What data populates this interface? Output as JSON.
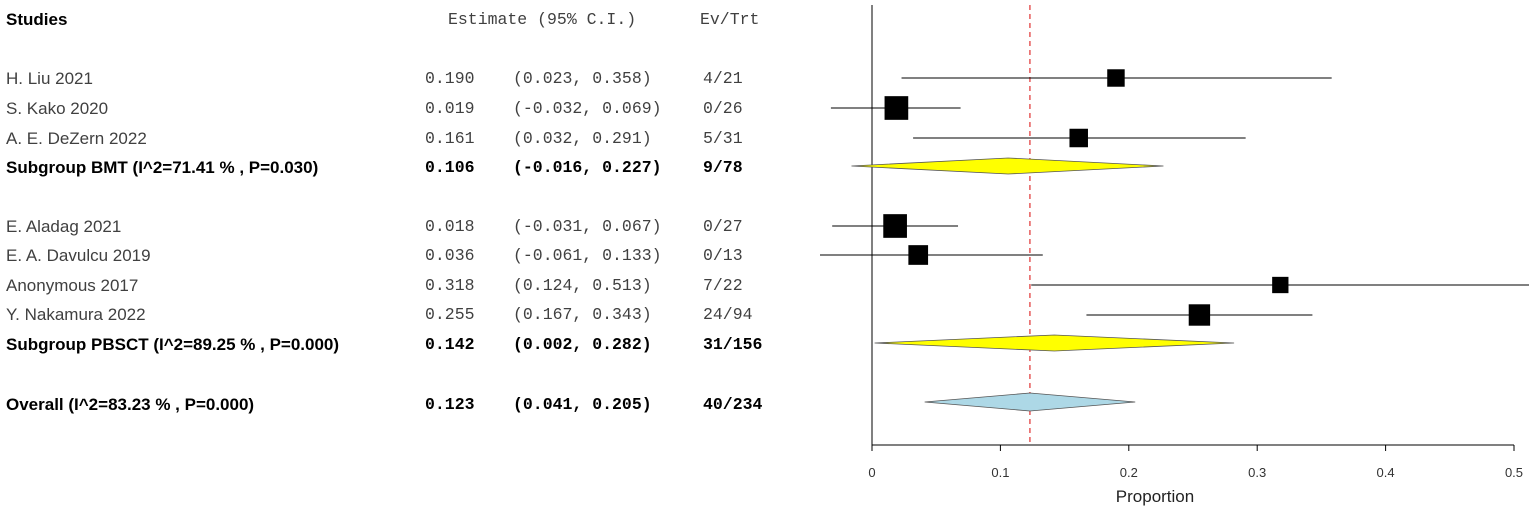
{
  "header": {
    "studies": "Studies",
    "estimate": "Estimate (95% C.I.)",
    "evtrt": "Ev/Trt"
  },
  "rows": [
    {
      "label": "H. Liu 2021",
      "est": "0.190",
      "ci": "(0.023, 0.358)",
      "ev": "4/21",
      "type": "study"
    },
    {
      "label": "S. Kako 2020",
      "est": "0.019",
      "ci": "(-0.032, 0.069)",
      "ev": "0/26",
      "type": "study"
    },
    {
      "label": "A. E. DeZern 2022",
      "est": "0.161",
      "ci": "(0.032, 0.291)",
      "ev": "5/31",
      "type": "study"
    },
    {
      "label": "Subgroup BMT (I^2=71.41 % , P=0.030)",
      "est": "0.106",
      "ci": "(-0.016, 0.227)",
      "ev": "9/78",
      "type": "subgroup"
    },
    {
      "label": "E. Aladag 2021",
      "est": "0.018",
      "ci": "(-0.031, 0.067)",
      "ev": "0/27",
      "type": "study"
    },
    {
      "label": "E. A. Davulcu 2019",
      "est": "0.036",
      "ci": "(-0.061, 0.133)",
      "ev": "0/13",
      "type": "study"
    },
    {
      "label": "Anonymous 2017",
      "est": "0.318",
      "ci": "(0.124, 0.513)",
      "ev": "7/22",
      "type": "study"
    },
    {
      "label": "Y. Nakamura 2022",
      "est": "0.255",
      "ci": "(0.167, 0.343)",
      "ev": "24/94",
      "type": "study"
    },
    {
      "label": "Subgroup PBSCT (I^2=89.25 % , P=0.000)",
      "est": "0.142",
      "ci": "(0.002, 0.282)",
      "ev": "31/156",
      "type": "subgroup"
    },
    {
      "label": "Overall (I^2=83.23 % , P=0.000)",
      "est": "0.123",
      "ci": "(0.041, 0.205)",
      "ev": "40/234",
      "type": "overall"
    }
  ],
  "chart_data": {
    "type": "scatter",
    "subtype": "forest-plot",
    "xlabel": "Proportion",
    "xlim": [
      0,
      0.5
    ],
    "xticks": [
      "0",
      "0.1",
      "0.2",
      "0.3",
      "0.4",
      "0.5"
    ],
    "reference_line": 0.123,
    "studies": [
      {
        "name": "H. Liu 2021",
        "estimate": 0.19,
        "lower": 0.023,
        "upper": 0.358,
        "weight": 21
      },
      {
        "name": "S. Kako 2020",
        "estimate": 0.019,
        "lower": -0.032,
        "upper": 0.069,
        "weight": 50
      },
      {
        "name": "A. E. DeZern 2022",
        "estimate": 0.161,
        "lower": 0.032,
        "upper": 0.291,
        "weight": 25
      },
      {
        "name": "E. Aladag 2021",
        "estimate": 0.018,
        "lower": -0.031,
        "upper": 0.067,
        "weight": 50
      },
      {
        "name": "E. A. Davulcu 2019",
        "estimate": 0.036,
        "lower": -0.061,
        "upper": 0.133,
        "weight": 30
      },
      {
        "name": "Anonymous 2017",
        "estimate": 0.318,
        "lower": 0.124,
        "upper": 0.513,
        "weight": 17
      },
      {
        "name": "Y. Nakamura 2022",
        "estimate": 0.255,
        "lower": 0.167,
        "upper": 0.343,
        "weight": 38
      }
    ],
    "subgroups": [
      {
        "name": "Subgroup BMT",
        "estimate": 0.106,
        "lower": -0.016,
        "upper": 0.227
      },
      {
        "name": "Subgroup PBSCT",
        "estimate": 0.142,
        "lower": 0.002,
        "upper": 0.282
      }
    ],
    "overall": {
      "name": "Overall",
      "estimate": 0.123,
      "lower": 0.041,
      "upper": 0.205
    },
    "colors": {
      "subgroup_diamond": "#ffff00",
      "overall_diamond": "#add8e6",
      "reference_line": "#e03030",
      "marker": "#000000"
    }
  }
}
